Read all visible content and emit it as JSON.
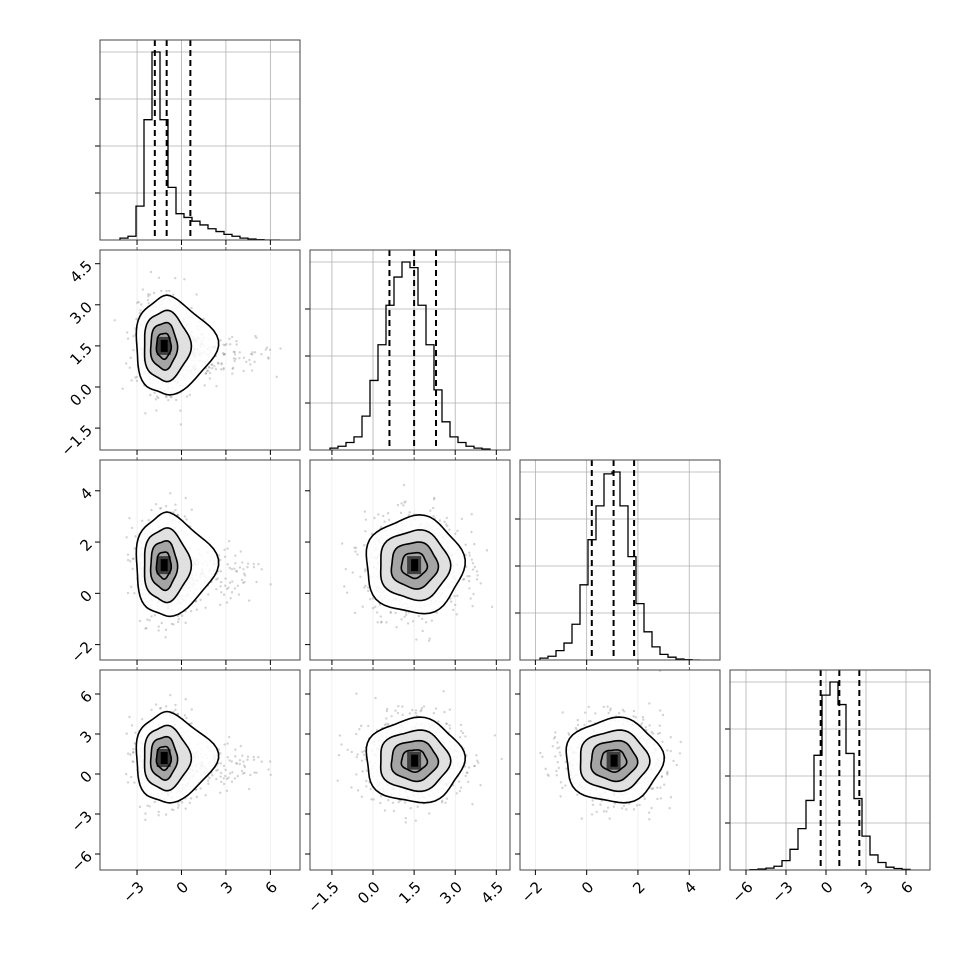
{
  "chart_data": {
    "type": "corner",
    "title": "",
    "grid": true,
    "colors": {
      "line": "#000000",
      "grid": "#b0b0b0",
      "points": "#808080",
      "density": "#000000"
    },
    "params": [
      {
        "range": [
          -5.5,
          8
        ],
        "ticks": [
          -3,
          0,
          3,
          6
        ],
        "tick_labels": [
          "−3",
          "0",
          "3",
          "6"
        ],
        "quantiles": [
          -1.8,
          -1.0,
          0.6
        ],
        "hist": [
          0.01,
          0.02,
          0.18,
          0.64,
          1.0,
          0.64,
          0.28,
          0.14,
          0.12,
          0.1,
          0.08,
          0.06,
          0.045,
          0.03,
          0.02,
          0.01,
          0.005,
          0.002,
          0,
          0
        ]
      },
      {
        "range": [
          -2.3,
          5.0
        ],
        "ticks": [
          -1.5,
          0,
          1.5,
          3,
          4.5
        ],
        "tick_labels": [
          "−1.5",
          "0.0",
          "1.5",
          "3.0",
          "4.5"
        ],
        "quantiles": [
          0.6,
          1.5,
          2.3
        ],
        "hist": [
          0.01,
          0.02,
          0.04,
          0.07,
          0.18,
          0.37,
          0.56,
          0.77,
          0.92,
          1.0,
          0.97,
          0.77,
          0.56,
          0.32,
          0.15,
          0.07,
          0.04,
          0.02,
          0.01,
          0.005
        ]
      },
      {
        "range": [
          -2.6,
          5.2
        ],
        "ticks": [
          -2,
          0,
          2,
          4
        ],
        "tick_labels": [
          "−2",
          "0",
          "2",
          "4"
        ],
        "quantiles": [
          0.2,
          1.05,
          1.85
        ],
        "hist": [
          0.01,
          0.02,
          0.05,
          0.09,
          0.19,
          0.4,
          0.64,
          0.82,
          0.99,
          1.0,
          0.82,
          0.55,
          0.3,
          0.15,
          0.07,
          0.03,
          0.015,
          0.005,
          0.002,
          0
        ]
      },
      {
        "range": [
          -7.2,
          7.8
        ],
        "ticks": [
          -6,
          -3,
          0,
          3,
          6
        ],
        "tick_labels": [
          "−6",
          "−3",
          "0",
          "3",
          "6"
        ],
        "quantiles": [
          -0.4,
          1.0,
          2.5
        ],
        "hist": [
          0.002,
          0.005,
          0.01,
          0.02,
          0.05,
          0.11,
          0.22,
          0.37,
          0.61,
          0.93,
          1.0,
          0.88,
          0.62,
          0.38,
          0.18,
          0.08,
          0.04,
          0.015,
          0.008,
          0.003
        ]
      }
    ],
    "row_y_ticks": [
      null,
      {
        "ticks": [
          -1.5,
          0,
          1.5,
          3,
          4.5
        ],
        "tick_labels": [
          "−1.5",
          "0.0",
          "1.5",
          "3.0",
          "4.5"
        ]
      },
      {
        "ticks": [
          -2,
          0,
          2,
          4
        ],
        "tick_labels": [
          "−2",
          "0",
          "2",
          "4"
        ]
      },
      {
        "ticks": [
          -6,
          -3,
          0,
          3,
          6
        ],
        "tick_labels": [
          "−6",
          "−3",
          "0",
          "3",
          "6"
        ]
      }
    ],
    "pairs": [
      {
        "row": 1,
        "col": 0,
        "center": [
          -1.2,
          1.5
        ],
        "spread": [
          0.9,
          0.85
        ],
        "tail": "x"
      },
      {
        "row": 2,
        "col": 0,
        "center": [
          -1.2,
          1.1
        ],
        "spread": [
          0.9,
          0.95
        ],
        "tail": "x"
      },
      {
        "row": 3,
        "col": 0,
        "center": [
          -1.2,
          1.2
        ],
        "spread": [
          0.9,
          1.6
        ],
        "tail": "x"
      },
      {
        "row": 2,
        "col": 1,
        "center": [
          1.5,
          1.1
        ],
        "spread": [
          0.85,
          0.9
        ],
        "tail": "none"
      },
      {
        "row": 3,
        "col": 1,
        "center": [
          1.5,
          1.0
        ],
        "spread": [
          0.85,
          1.5
        ],
        "tail": "none"
      },
      {
        "row": 3,
        "col": 2,
        "center": [
          1.05,
          1.0
        ],
        "spread": [
          0.9,
          1.5
        ],
        "tail": "none"
      }
    ]
  }
}
